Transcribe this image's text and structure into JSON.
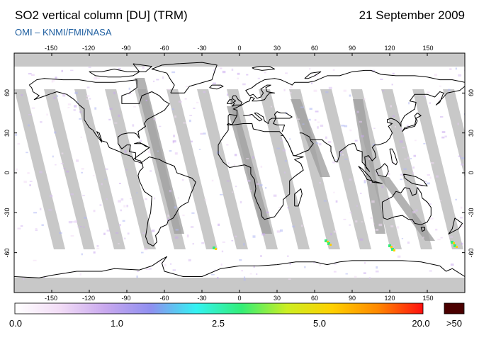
{
  "header": {
    "title": "SO2 vertical column [DU] (TRM)",
    "date": "21 September 2009",
    "subtitle": "OMI  –  KNMI/FMI/NASA"
  },
  "map": {
    "projection": "equirectangular",
    "lon_range": [
      -180,
      180
    ],
    "lat_range": [
      -90,
      90
    ],
    "lon_ticks": [
      "-150",
      "-120",
      "-90",
      "-60",
      "-30",
      "0",
      "30",
      "60",
      "90",
      "120",
      "150"
    ],
    "lat_ticks": [
      "60",
      "30",
      "0",
      "-30",
      "-60"
    ],
    "colors": {
      "ocean_background": "#ffffff",
      "land_outline": "#000000",
      "orbit_gap": "#c8c8c8",
      "orbit_gap_land": "#a0a0a0",
      "polar_no_data": "#c8c8c8"
    }
  },
  "colorbar": {
    "labels": [
      "0.0",
      "1.0",
      "2.5",
      "5.0",
      "20.0",
      ">50"
    ],
    "colors": [
      "#ffffff",
      "#f2dcf6",
      "#c8a8ee",
      "#8f8ff0",
      "#33f2f2",
      "#33ee77",
      "#ccee22",
      "#ffd000",
      "#ff8800",
      "#ff1010"
    ],
    "overflow_color": "#4a0000"
  }
}
